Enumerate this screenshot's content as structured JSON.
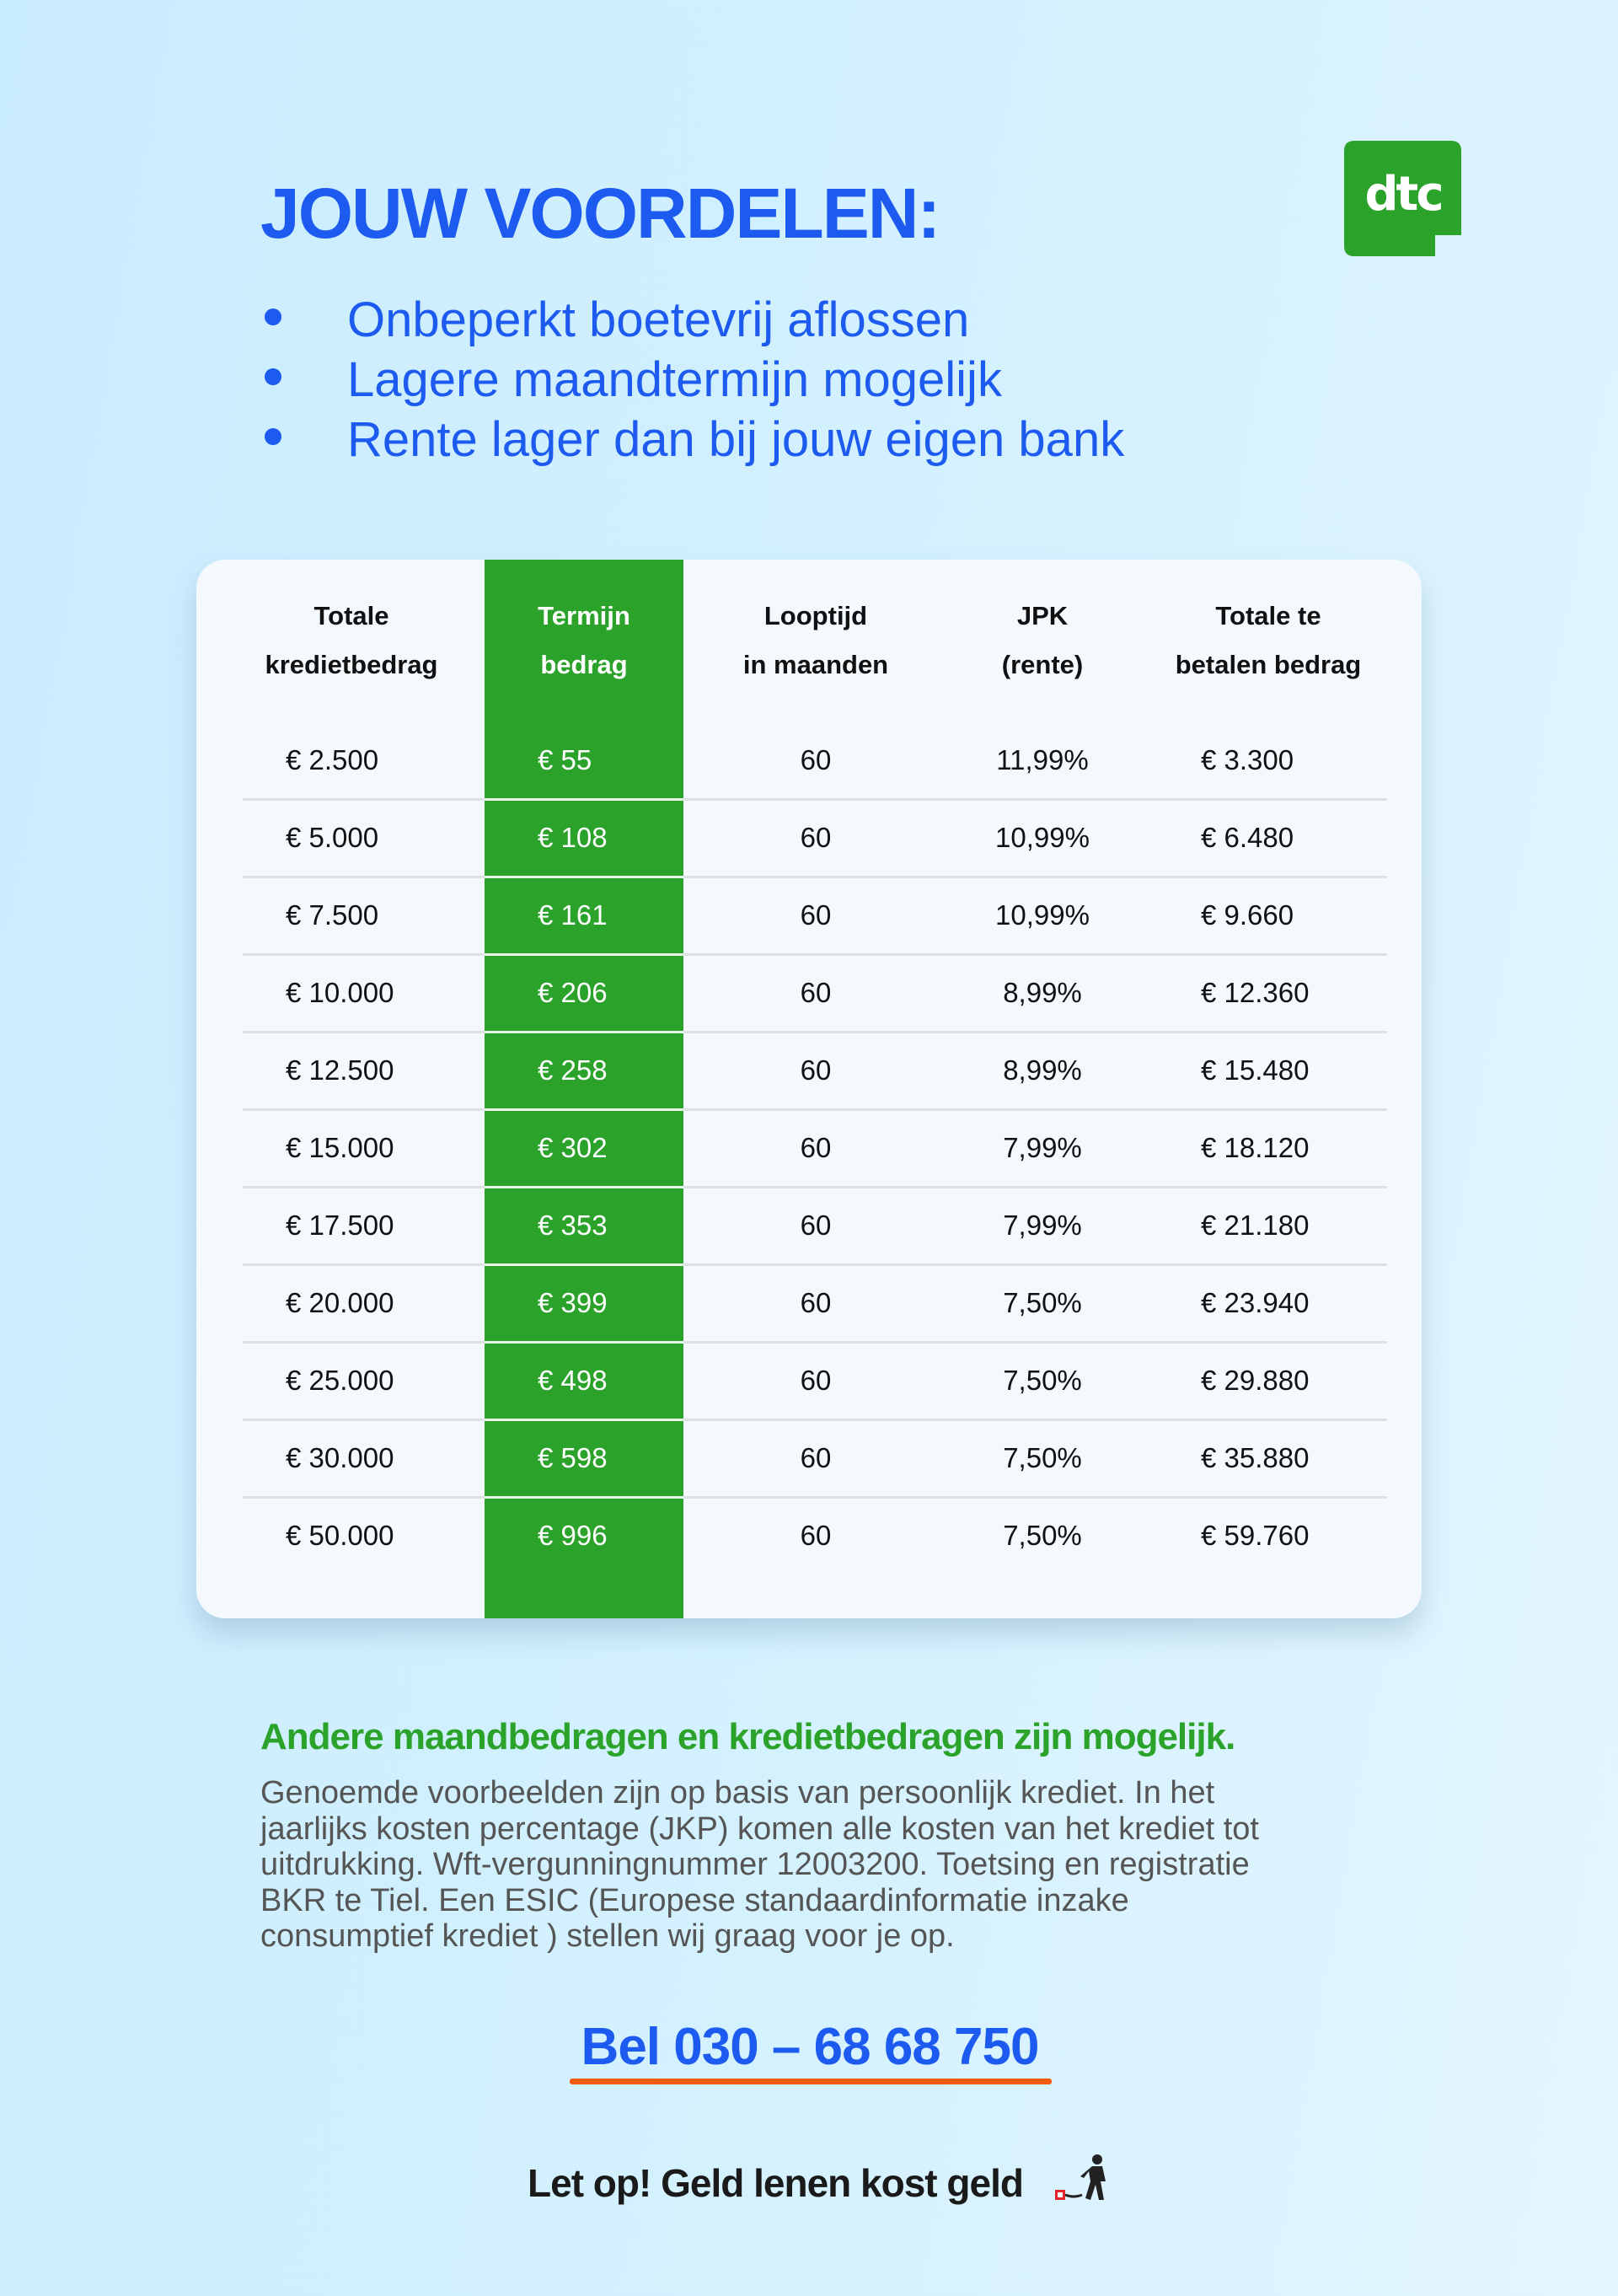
{
  "header": {
    "title": "JOUW VOORDELEN:",
    "benefits": [
      "Onbeperkt boetevrij aflossen",
      "Lagere maandtermijn mogelijk",
      "Rente lager dan bij jouw eigen bank"
    ],
    "logo_text": "dtc"
  },
  "colors": {
    "blue": "#1d5bf0",
    "green": "#2ba229",
    "orange": "#f25a0e"
  },
  "table": {
    "headers": [
      [
        "Totale",
        "kredietbedrag"
      ],
      [
        "Termijn",
        "bedrag"
      ],
      [
        "Looptijd",
        "in maanden"
      ],
      [
        "JPK",
        "(rente)"
      ],
      [
        "Totale te",
        "betalen bedrag"
      ]
    ],
    "rows": [
      [
        "€ 2.500",
        "€ 55",
        "60",
        "11,99%",
        "€ 3.300"
      ],
      [
        "€ 5.000",
        "€ 108",
        "60",
        "10,99%",
        "€ 6.480"
      ],
      [
        "€ 7.500",
        "€ 161",
        "60",
        "10,99%",
        "€ 9.660"
      ],
      [
        "€ 10.000",
        "€ 206",
        "60",
        "8,99%",
        "€ 12.360"
      ],
      [
        "€ 12.500",
        "€ 258",
        "60",
        "8,99%",
        "€ 15.480"
      ],
      [
        "€ 15.000",
        "€ 302",
        "60",
        "7,99%",
        "€ 18.120"
      ],
      [
        "€ 17.500",
        "€ 353",
        "60",
        "7,99%",
        "€ 21.180"
      ],
      [
        "€ 20.000",
        "€ 399",
        "60",
        "7,50%",
        "€ 23.940"
      ],
      [
        "€ 25.000",
        "€ 498",
        "60",
        "7,50%",
        "€ 29.880"
      ],
      [
        "€ 30.000",
        "€ 598",
        "60",
        "7,50%",
        "€ 35.880"
      ],
      [
        "€ 50.000",
        "€ 996",
        "60",
        "7,50%",
        "€ 59.760"
      ]
    ]
  },
  "note": "Andere maandbedragen en kredietbedragen zijn mogelijk.",
  "disclaimer_lines": [
    "Genoemde voorbeelden zijn op basis van persoonlijk krediet. In het",
    "jaarlijks kosten percentage (JKP) komen alle kosten van het krediet tot",
    "uitdrukking. Wft-vergunningnummer 12003200. Toetsing en registratie",
    "BKR te Tiel. Een ESIC (Europese standaardinformatie inzake",
    "consumptief krediet ) stellen wij graag voor je op."
  ],
  "phone_cta": "Bel 030 – 68 68 750",
  "footer": "Let op! Geld lenen kost geld"
}
